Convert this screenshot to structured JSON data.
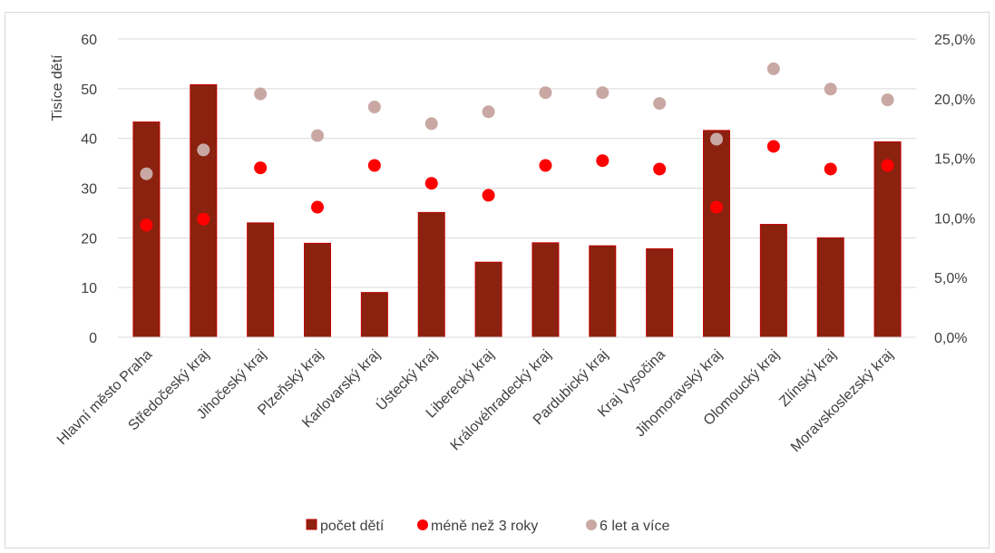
{
  "chart_data": {
    "type": "bar",
    "categories": [
      "Hlavní město Praha",
      "Středočeský kraj",
      "Jihočeský kraj",
      "Plzeňský kraj",
      "Karlovarský kraj",
      "Ústecký kraj",
      "Liberecký kraj",
      "Královéhradecký kraj",
      "Pardubický kraj",
      "Kraj Vysočina",
      "Jihomoravský kraj",
      "Olomoucký kraj",
      "Zlínský kraj",
      "Moravskoslezský kraj"
    ],
    "ylabel": "Tisíce dětí",
    "ylim": [
      0,
      60
    ],
    "yticks": [
      "0",
      "10",
      "20",
      "30",
      "40",
      "50",
      "60"
    ],
    "y2lim": [
      0,
      25
    ],
    "y2ticks": [
      "0,0%",
      "5,0%",
      "10,0%",
      "15,0%",
      "20,0%",
      "25,0%"
    ],
    "grid": true,
    "legend_position": "bottom",
    "series": [
      {
        "name": "počet dětí",
        "type": "bar",
        "axis": "left",
        "color": "#8b2210",
        "values": [
          43.3,
          50.8,
          23.0,
          18.9,
          9.0,
          25.1,
          15.1,
          19.0,
          18.4,
          17.8,
          41.6,
          22.7,
          20.0,
          39.3
        ]
      },
      {
        "name": "méně než 3 roky",
        "type": "scatter",
        "axis": "right",
        "color": "#ff0000",
        "values": [
          9.4,
          9.9,
          14.2,
          10.9,
          14.4,
          12.9,
          11.9,
          14.4,
          14.8,
          14.1,
          10.9,
          16.0,
          14.1,
          14.4
        ]
      },
      {
        "name": "6 let a více",
        "type": "scatter",
        "axis": "right",
        "color": "#c9a8a4",
        "values": [
          13.7,
          15.7,
          20.4,
          16.9,
          19.3,
          17.9,
          18.9,
          20.5,
          20.5,
          19.6,
          16.6,
          22.5,
          20.8,
          19.9
        ]
      }
    ]
  }
}
